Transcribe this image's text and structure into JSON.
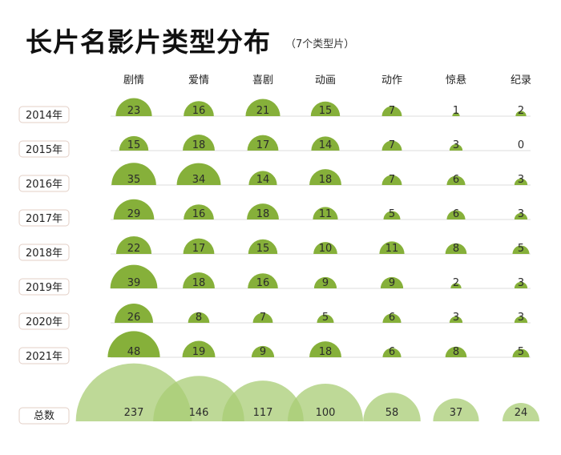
{
  "title": "长片名影片类型分布",
  "subtitle": "（7个类型片）",
  "colors": {
    "bubble": "#86b03a",
    "total_bubble": "#a8cc74",
    "baseline": "#dcdcdc"
  },
  "chart_data": {
    "type": "bubble-grid",
    "columns": [
      "剧情",
      "爱情",
      "喜剧",
      "动画",
      "动作",
      "惊悬",
      "纪录"
    ],
    "rows": [
      {
        "label": "2014年",
        "values": [
          23,
          16,
          21,
          15,
          7,
          1,
          2
        ]
      },
      {
        "label": "2015年",
        "values": [
          15,
          18,
          17,
          14,
          7,
          3,
          0
        ]
      },
      {
        "label": "2016年",
        "values": [
          35,
          34,
          14,
          18,
          7,
          6,
          3
        ]
      },
      {
        "label": "2017年",
        "values": [
          29,
          16,
          18,
          11,
          5,
          6,
          3
        ]
      },
      {
        "label": "2018年",
        "values": [
          22,
          17,
          15,
          10,
          11,
          8,
          5
        ]
      },
      {
        "label": "2019年",
        "values": [
          39,
          18,
          16,
          9,
          9,
          2,
          3
        ]
      },
      {
        "label": "2020年",
        "values": [
          26,
          8,
          7,
          5,
          6,
          3,
          3
        ]
      },
      {
        "label": "2021年",
        "values": [
          48,
          19,
          9,
          18,
          6,
          8,
          5
        ]
      }
    ],
    "totals": {
      "label": "总数",
      "values": [
        237,
        146,
        117,
        100,
        58,
        37,
        24
      ]
    }
  }
}
